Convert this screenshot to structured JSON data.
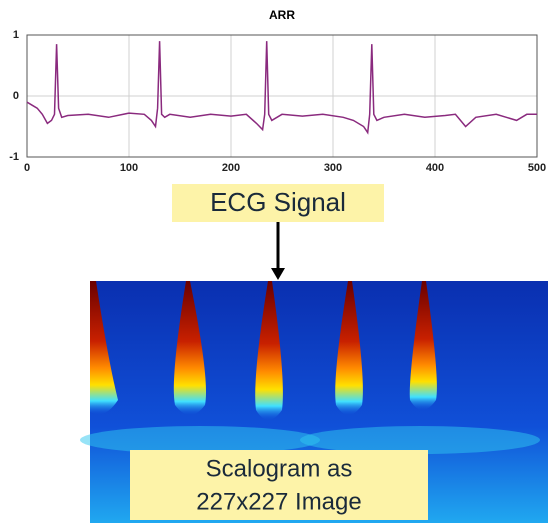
{
  "chart_data": {
    "type": "line",
    "title": "ARR",
    "x": [
      0,
      5,
      10,
      15,
      20,
      24,
      27,
      29,
      31,
      34,
      40,
      60,
      80,
      100,
      115,
      122,
      126,
      128,
      130,
      132,
      135,
      140,
      160,
      180,
      200,
      215,
      225,
      231,
      233,
      235,
      237,
      240,
      250,
      270,
      290,
      310,
      320,
      330,
      334,
      336,
      338,
      340,
      343,
      350,
      370,
      390,
      410,
      420,
      430,
      440,
      460,
      480,
      490,
      500
    ],
    "values": [
      -0.1,
      -0.15,
      -0.2,
      -0.3,
      -0.45,
      -0.4,
      -0.3,
      0.85,
      -0.2,
      -0.35,
      -0.32,
      -0.3,
      -0.35,
      -0.28,
      -0.3,
      -0.4,
      -0.5,
      -0.2,
      0.9,
      -0.3,
      -0.35,
      -0.3,
      -0.35,
      -0.3,
      -0.33,
      -0.3,
      -0.45,
      -0.55,
      -0.3,
      0.9,
      -0.3,
      -0.4,
      -0.3,
      -0.33,
      -0.3,
      -0.35,
      -0.4,
      -0.5,
      -0.6,
      -0.3,
      0.85,
      -0.3,
      -0.4,
      -0.35,
      -0.3,
      -0.35,
      -0.32,
      -0.3,
      -0.5,
      -0.35,
      -0.3,
      -0.4,
      -0.3,
      -0.3
    ],
    "color": "#8a2a7e",
    "xlim": [
      0,
      500
    ],
    "xticks": [
      0,
      100,
      200,
      300,
      400,
      500
    ],
    "ylim": [
      -1,
      1
    ],
    "yticks": [
      -1,
      0,
      1
    ],
    "grid": true
  },
  "signal_label": "ECG Signal",
  "image_label": [
    "Scalogram as",
    "227x227 Image"
  ]
}
